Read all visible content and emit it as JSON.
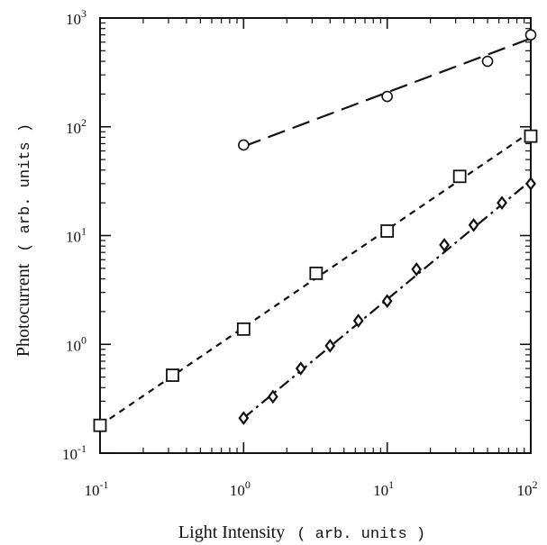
{
  "chart_data": {
    "type": "scatter",
    "xlabel": {
      "main": "Light Intensity",
      "paren": "( arb. units )"
    },
    "ylabel": {
      "main": "Photocurrent",
      "paren": "( arb. units )"
    },
    "xscale": "log",
    "yscale": "log",
    "xlim": [
      0.1,
      100
    ],
    "ylim": [
      0.1,
      1000
    ],
    "x_ticks": [
      {
        "base": "10",
        "exp": "-1",
        "value": 0.1
      },
      {
        "base": "10",
        "exp": "0",
        "value": 1
      },
      {
        "base": "10",
        "exp": "1",
        "value": 10
      },
      {
        "base": "10",
        "exp": "2",
        "value": 100
      }
    ],
    "y_ticks": [
      {
        "base": "10",
        "exp": "-1",
        "value": 0.1
      },
      {
        "base": "10",
        "exp": "0",
        "value": 1
      },
      {
        "base": "10",
        "exp": "1",
        "value": 10
      },
      {
        "base": "10",
        "exp": "2",
        "value": 100
      },
      {
        "base": "10",
        "exp": "3",
        "value": 1000
      }
    ],
    "grid": false,
    "series": [
      {
        "marker": "circle",
        "line": "long-dash",
        "points": [
          [
            1,
            68
          ],
          [
            10,
            190
          ],
          [
            50,
            400
          ],
          [
            100,
            700
          ]
        ],
        "fit": [
          [
            1,
            66
          ],
          [
            100,
            650
          ]
        ]
      },
      {
        "marker": "square",
        "line": "short-dash",
        "points": [
          [
            0.1,
            0.18
          ],
          [
            0.32,
            0.52
          ],
          [
            1,
            1.38
          ],
          [
            3.2,
            4.5
          ],
          [
            10,
            11
          ],
          [
            32,
            35
          ],
          [
            100,
            82
          ]
        ],
        "fit": [
          [
            0.1,
            0.18
          ],
          [
            100,
            90
          ]
        ]
      },
      {
        "marker": "diamond",
        "line": "dash-dot",
        "points": [
          [
            1,
            0.21
          ],
          [
            1.6,
            0.33
          ],
          [
            2.5,
            0.6
          ],
          [
            4,
            0.97
          ],
          [
            6.3,
            1.65
          ],
          [
            10,
            2.5
          ],
          [
            16,
            4.9
          ],
          [
            25,
            8.2
          ],
          [
            40,
            12.5
          ],
          [
            63,
            20
          ],
          [
            100,
            30
          ]
        ],
        "fit": [
          [
            1,
            0.21
          ],
          [
            100,
            32
          ]
        ]
      }
    ]
  }
}
